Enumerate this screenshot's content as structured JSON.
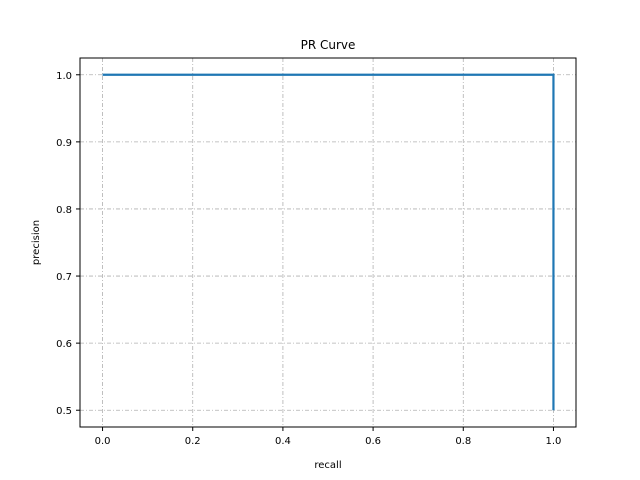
{
  "chart_data": {
    "type": "line",
    "title": "PR Curve",
    "xlabel": "recall",
    "ylabel": "precision",
    "xlim": [
      -0.05,
      1.05
    ],
    "ylim": [
      0.475,
      1.025
    ],
    "xticks": [
      0.0,
      0.2,
      0.4,
      0.6,
      0.8,
      1.0
    ],
    "xtick_labels": [
      "0.0",
      "0.2",
      "0.4",
      "0.6",
      "0.8",
      "1.0"
    ],
    "yticks": [
      0.5,
      0.6,
      0.7,
      0.8,
      0.9,
      1.0
    ],
    "ytick_labels": [
      "0.5",
      "0.6",
      "0.7",
      "0.8",
      "0.9",
      "1.0"
    ],
    "grid": true,
    "grid_style": "dash-dot",
    "series": [
      {
        "color": "#1f77b4",
        "x": [
          0.0,
          1.0,
          1.0
        ],
        "y": [
          1.0,
          1.0,
          0.5
        ]
      }
    ]
  }
}
